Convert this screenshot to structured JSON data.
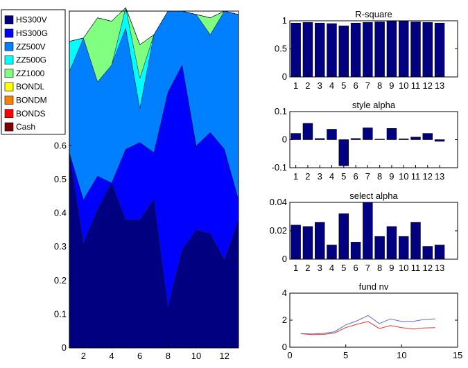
{
  "chart_data": [
    {
      "type": "area",
      "x": [
        1,
        2,
        3,
        4,
        5,
        6,
        7,
        8,
        9,
        10,
        11,
        12,
        13
      ],
      "xticks": [
        2,
        4,
        6,
        8,
        10,
        12
      ],
      "xlim": [
        1,
        13
      ],
      "ylim": [
        0,
        1
      ],
      "yticks": [
        0,
        0.1,
        0.2,
        0.3,
        0.4,
        0.5,
        0.6
      ],
      "legend_position": "top-left",
      "series": [
        {
          "name": "HS300V",
          "color": "#000080",
          "values": [
            0.58,
            0.31,
            0.41,
            0.49,
            0.38,
            0.38,
            0.44,
            0.12,
            0.29,
            0.35,
            0.34,
            0.26,
            0.38
          ]
        },
        {
          "name": "HS300G",
          "color": "#0000FF",
          "values": [
            0.0,
            0.13,
            0.1,
            0.0,
            0.21,
            0.23,
            0.14,
            0.64,
            0.55,
            0.25,
            0.3,
            0.33,
            0.06
          ]
        },
        {
          "name": "ZZ500V",
          "color": "#0080FF",
          "values": [
            0.24,
            0.48,
            0.28,
            0.35,
            0.36,
            0.1,
            0.35,
            0.24,
            0.16,
            0.39,
            0.29,
            0.41,
            0.55
          ]
        },
        {
          "name": "ZZ500G",
          "color": "#00FFFF",
          "values": [
            0.09,
            0.0,
            0.0,
            0.0,
            0.06,
            0.09,
            0.0,
            0.0,
            0.0,
            0.0,
            0.0,
            0.0,
            0.0
          ]
        },
        {
          "name": "ZZ1000",
          "color": "#80FF80",
          "values": [
            0.0,
            0.0,
            0.19,
            0.13,
            0.0,
            0.1,
            0.0,
            0.0,
            0.0,
            0.0,
            0.05,
            0.0,
            0.0
          ]
        },
        {
          "name": "BONDL",
          "color": "#FFFF00",
          "values": [
            0.0,
            0.0,
            0.0,
            0.0,
            0.0,
            0.0,
            0.0,
            0.0,
            0.0,
            0.0,
            0.0,
            0.0,
            0.0
          ]
        },
        {
          "name": "BONDM",
          "color": "#FF8000",
          "values": [
            0.0,
            0.0,
            0.0,
            0.0,
            0.0,
            0.0,
            0.0,
            0.0,
            0.0,
            0.0,
            0.0,
            0.0,
            0.0
          ]
        },
        {
          "name": "BONDS",
          "color": "#FF0000",
          "values": [
            0.0,
            0.0,
            0.0,
            0.0,
            0.0,
            0.0,
            0.0,
            0.0,
            0.0,
            0.0,
            0.0,
            0.0,
            0.0
          ]
        },
        {
          "name": "Cash",
          "color": "#800000",
          "values": [
            0.0,
            0.0,
            0.0,
            0.0,
            0.0,
            0.0,
            0.0,
            0.0,
            0.0,
            0.0,
            0.0,
            0.0,
            0.0
          ]
        }
      ]
    },
    {
      "type": "bar",
      "title": "R-square",
      "categories": [
        "1",
        "2",
        "3",
        "4",
        "5",
        "6",
        "7",
        "8",
        "9",
        "10",
        "11",
        "12",
        "13"
      ],
      "values": [
        0.96,
        0.97,
        0.96,
        0.95,
        0.91,
        0.96,
        0.97,
        0.98,
        0.99,
        0.99,
        0.98,
        0.97,
        0.96
      ],
      "ylim": [
        0,
        1
      ],
      "yticks": [
        0,
        0.5,
        1
      ],
      "ytick_labels": [
        "0",
        "0.5",
        "1"
      ],
      "color": "#000080"
    },
    {
      "type": "bar",
      "title": "style alpha",
      "categories": [
        "1",
        "2",
        "3",
        "4",
        "5",
        "6",
        "7",
        "8",
        "9",
        "10",
        "11",
        "12",
        "13"
      ],
      "values": [
        0.022,
        0.058,
        0.004,
        0.037,
        -0.093,
        0.004,
        0.042,
        0.002,
        0.04,
        0.003,
        0.009,
        0.022,
        -0.006
      ],
      "ylim": [
        -0.1,
        0.1
      ],
      "yticks": [
        -0.1,
        0,
        0.1
      ],
      "ytick_labels": [
        "-0.1",
        "0",
        "0.1"
      ],
      "color": "#000080"
    },
    {
      "type": "bar",
      "title": "select alpha",
      "categories": [
        "1",
        "2",
        "3",
        "4",
        "5",
        "6",
        "7",
        "8",
        "9",
        "10",
        "11",
        "12",
        "13"
      ],
      "values": [
        0.024,
        0.023,
        0.026,
        0.01,
        0.032,
        0.012,
        0.04,
        0.016,
        0.023,
        0.016,
        0.026,
        0.009,
        0.01
      ],
      "ylim": [
        0,
        0.04
      ],
      "yticks": [
        0,
        0.02,
        0.04
      ],
      "ytick_labels": [
        "0",
        "0.02",
        "0.04"
      ],
      "color": "#000080"
    },
    {
      "type": "line",
      "title": "fund nv",
      "x": [
        1,
        2,
        3,
        4,
        5,
        6,
        7,
        8,
        9,
        10,
        11,
        12,
        13
      ],
      "xlim": [
        0,
        15
      ],
      "xticks": [
        0,
        5,
        10,
        15
      ],
      "ylim": [
        0,
        4
      ],
      "yticks": [
        0,
        2,
        4
      ],
      "series": [
        {
          "color": "#5a6cdc",
          "values": [
            1.0,
            0.98,
            1.02,
            1.15,
            1.65,
            1.95,
            2.35,
            1.75,
            2.1,
            1.9,
            1.9,
            2.05,
            2.1
          ]
        },
        {
          "color": "#e8332a",
          "values": [
            1.0,
            0.93,
            0.95,
            1.05,
            1.45,
            1.7,
            1.9,
            1.38,
            1.6,
            1.45,
            1.35,
            1.42,
            1.45
          ]
        }
      ]
    }
  ]
}
